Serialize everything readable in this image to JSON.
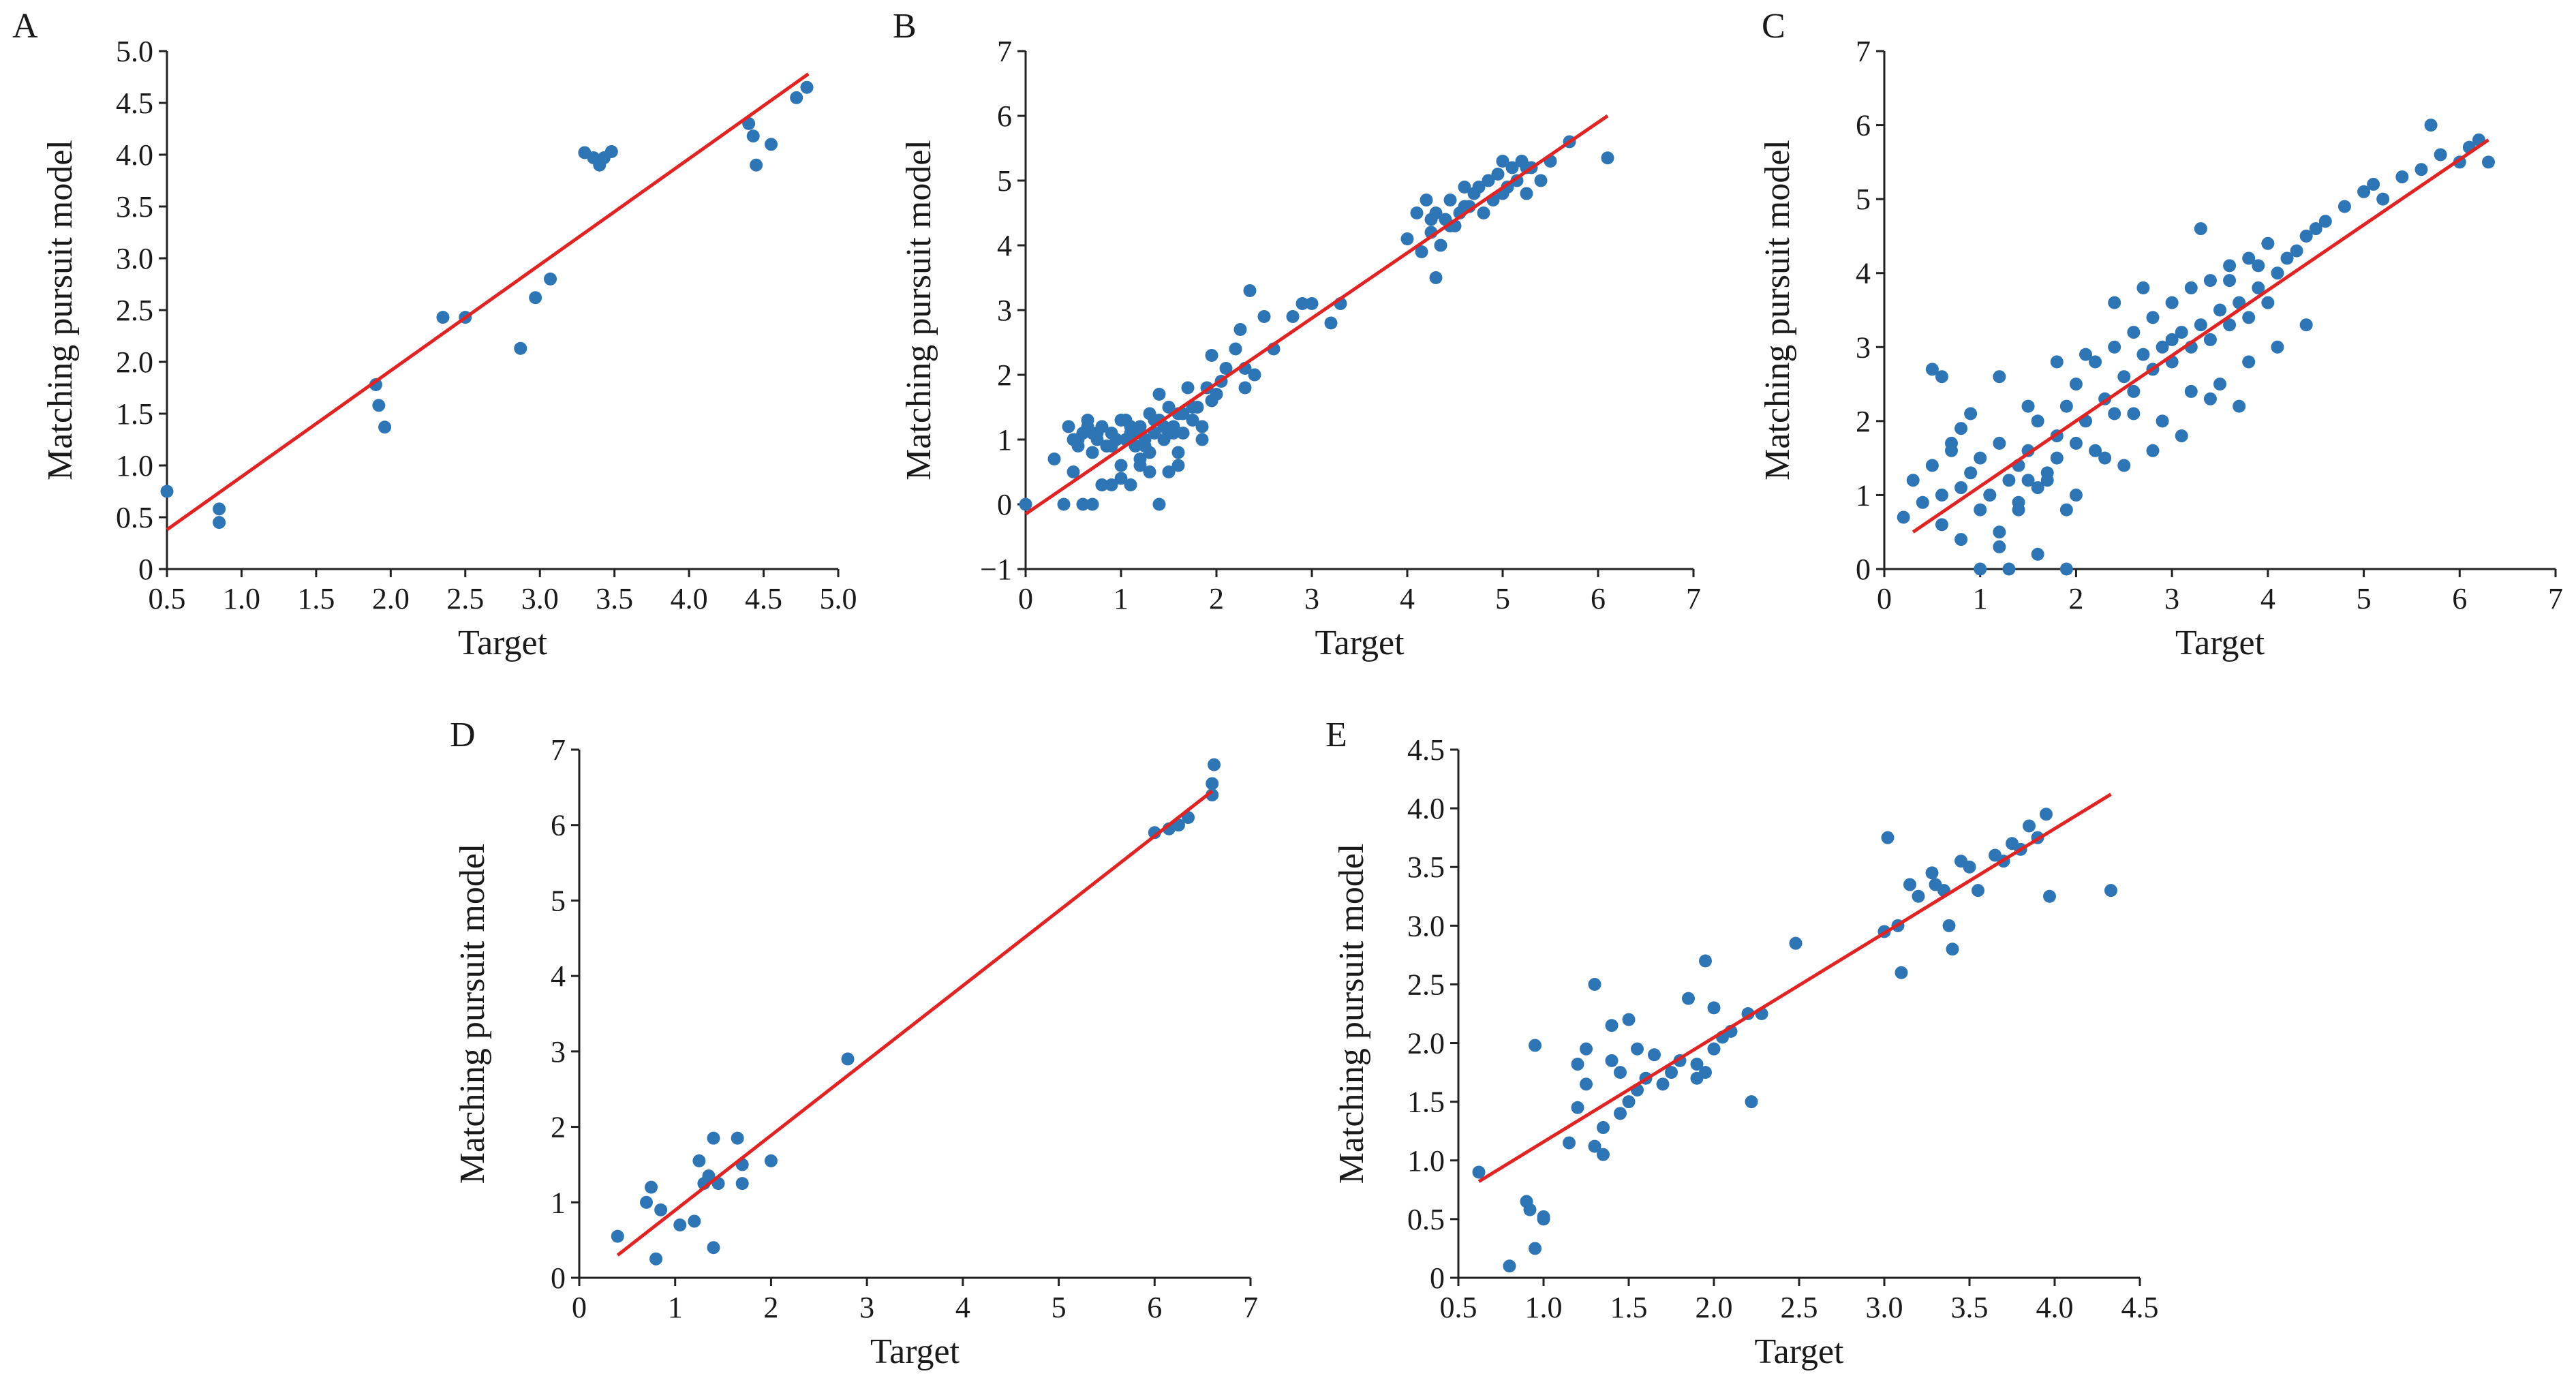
{
  "colors": {
    "point": "#2e75b6",
    "fit_line": "#e02424",
    "axis": "#222222"
  },
  "chart_data": [
    {
      "panel": "A",
      "type": "scatter",
      "xlabel": "Target",
      "ylabel": "Matching pursuit model",
      "xlim": [
        0.5,
        5.0
      ],
      "ylim": [
        0,
        5.0
      ],
      "xticks": [
        "0.5",
        "1.0",
        "1.5",
        "2.0",
        "2.5",
        "3.0",
        "3.5",
        "4.0",
        "4.5",
        "5.0"
      ],
      "yticks": [
        "0",
        "0.5",
        "1.0",
        "1.5",
        "2.0",
        "2.5",
        "3.0",
        "3.5",
        "4.0",
        "4.5",
        "5.0"
      ],
      "fit_line": [
        [
          0.5,
          0.38
        ],
        [
          4.8,
          4.78
        ]
      ],
      "x": [
        0.5,
        0.85,
        0.85,
        1.9,
        1.92,
        1.96,
        2.35,
        2.5,
        2.87,
        2.97,
        3.07,
        3.3,
        3.36,
        3.4,
        3.43,
        3.48,
        4.4,
        4.43,
        4.45,
        4.55,
        4.72,
        4.79
      ],
      "y": [
        0.75,
        0.58,
        0.45,
        1.78,
        1.58,
        1.37,
        2.43,
        2.43,
        2.13,
        2.62,
        2.8,
        4.02,
        3.97,
        3.9,
        3.97,
        4.03,
        4.3,
        4.18,
        3.9,
        4.1,
        4.55,
        4.65
      ]
    },
    {
      "panel": "B",
      "type": "scatter",
      "xlabel": "Target",
      "ylabel": "Matching pursuit model",
      "xlim": [
        0,
        7
      ],
      "ylim": [
        -1,
        7
      ],
      "xticks": [
        "0",
        "1",
        "2",
        "3",
        "4",
        "5",
        "6",
        "7"
      ],
      "yticks": [
        "−1",
        "0",
        "1",
        "2",
        "3",
        "4",
        "5",
        "6",
        "7"
      ],
      "fit_line": [
        [
          0,
          -0.15
        ],
        [
          6.1,
          6.0
        ]
      ],
      "x": [
        0,
        0.3,
        0.4,
        0.45,
        0.5,
        0.5,
        0.55,
        0.6,
        0.6,
        0.65,
        0.7,
        0.7,
        0.75,
        0.8,
        0.8,
        0.85,
        0.9,
        0.9,
        0.95,
        1.0,
        1.0,
        1.05,
        1.1,
        1.1,
        1.15,
        1.2,
        1.2,
        1.25,
        1.3,
        1.3,
        1.35,
        1.4,
        1.4,
        1.45,
        1.5,
        1.5,
        1.55,
        1.6,
        1.6,
        1.65,
        1.7,
        1.75,
        1.8,
        1.85,
        1.9,
        1.95,
        2.0,
        2.05,
        2.1,
        2.2,
        2.25,
        2.3,
        2.35,
        2.4,
        2.5,
        2.6,
        2.8,
        2.9,
        3.0,
        3.2,
        3.3,
        4.0,
        4.1,
        4.15,
        4.2,
        4.25,
        4.3,
        4.35,
        4.4,
        4.45,
        4.5,
        4.55,
        4.6,
        4.65,
        4.7,
        4.75,
        4.8,
        4.85,
        4.9,
        4.95,
        5.0,
        5.05,
        5.1,
        5.15,
        5.2,
        5.25,
        5.3,
        5.4,
        5.5,
        5.7,
        6.1,
        0.7,
        0.9,
        1.1,
        1.3,
        1.5,
        1.2,
        0.8,
        1.0,
        1.4,
        1.6,
        2.3,
        4.3,
        4.6,
        5.0,
        0.55,
        0.65,
        0.75,
        0.85,
        0.95,
        1.05,
        1.15,
        1.25,
        1.35,
        1.45,
        1.55,
        1.65,
        1.75,
        1.85,
        1.95,
        4.25,
        4.45,
        4.65,
        4.85,
        5.05,
        5.25
      ],
      "y": [
        0,
        0.7,
        0.0,
        1.2,
        0.5,
        1.0,
        0.9,
        0.0,
        1.1,
        1.3,
        0.8,
        0.0,
        1.0,
        1.2,
        0.3,
        0.9,
        1.1,
        0.3,
        1.0,
        1.3,
        0.6,
        1.0,
        1.1,
        0.3,
        0.9,
        1.2,
        0.7,
        1.0,
        1.4,
        0.5,
        1.1,
        1.3,
        0.0,
        1.0,
        1.5,
        0.5,
        1.2,
        1.4,
        0.6,
        1.1,
        1.8,
        1.3,
        1.5,
        1.2,
        1.8,
        2.3,
        1.7,
        1.9,
        2.1,
        2.4,
        2.7,
        1.8,
        3.3,
        2.0,
        2.9,
        2.4,
        2.9,
        3.1,
        3.1,
        2.8,
        3.1,
        4.1,
        4.5,
        3.9,
        4.7,
        4.2,
        4.5,
        4.0,
        4.4,
        4.7,
        4.3,
        4.5,
        4.9,
        4.6,
        4.8,
        4.9,
        4.5,
        5.0,
        4.7,
        5.1,
        5.3,
        4.9,
        5.2,
        5.0,
        5.3,
        4.8,
        5.2,
        5.0,
        5.3,
        5.6,
        5.35,
        1.1,
        0.9,
        1.2,
        0.8,
        1.1,
        0.6,
        0.3,
        0.4,
        1.7,
        0.8,
        2.1,
        3.5,
        4.6,
        4.8,
        1.0,
        1.2,
        1.1,
        0.9,
        1.0,
        1.3,
        1.1,
        0.9,
        1.3,
        1.2,
        1.1,
        1.4,
        1.5,
        1.0,
        1.6,
        4.4,
        4.3,
        4.6,
        5.0,
        4.9,
        5.2
      ]
    },
    {
      "panel": "C",
      "type": "scatter",
      "xlabel": "Target",
      "ylabel": "Matching pursuit model",
      "xlim": [
        0,
        7
      ],
      "ylim": [
        0,
        7
      ],
      "xticks": [
        "0",
        "1",
        "2",
        "3",
        "4",
        "5",
        "6",
        "7"
      ],
      "yticks": [
        "0",
        "1",
        "2",
        "3",
        "4",
        "5",
        "6",
        "7"
      ],
      "fit_line": [
        [
          0.3,
          0.5
        ],
        [
          6.3,
          5.8
        ]
      ],
      "x": [
        0.2,
        0.3,
        0.4,
        0.5,
        0.6,
        0.6,
        0.7,
        0.8,
        0.8,
        0.9,
        1.0,
        1.0,
        1.1,
        1.2,
        1.2,
        1.3,
        1.4,
        1.4,
        1.5,
        1.6,
        1.6,
        1.7,
        1.8,
        1.8,
        1.9,
        2.0,
        2.0,
        2.1,
        2.2,
        2.2,
        2.3,
        2.4,
        2.4,
        2.5,
        2.6,
        2.6,
        2.7,
        2.8,
        2.8,
        2.9,
        3.0,
        3.0,
        3.1,
        3.2,
        3.2,
        3.3,
        3.4,
        3.4,
        3.5,
        3.6,
        3.6,
        3.7,
        3.8,
        3.8,
        3.9,
        4.0,
        4.0,
        4.1,
        4.2,
        4.3,
        4.4,
        4.5,
        4.6,
        4.8,
        5.0,
        5.2,
        5.4,
        5.6,
        5.8,
        6.0,
        6.2,
        6.3,
        0.6,
        0.9,
        1.2,
        1.5,
        1.8,
        2.1,
        2.4,
        2.7,
        3.0,
        3.3,
        3.6,
        3.9,
        1.0,
        1.3,
        1.6,
        1.9,
        2.5,
        3.1,
        3.7,
        0.7,
        1.1,
        1.4,
        1.7,
        2.0,
        2.3,
        2.9,
        3.5,
        4.1,
        0.8,
        1.5,
        2.6,
        3.2,
        3.8,
        4.4,
        1.2,
        1.9,
        2.8,
        3.4,
        0.5,
        5.1,
        5.7,
        6.1
      ],
      "y": [
        0.7,
        1.2,
        0.9,
        1.4,
        0.6,
        1.0,
        1.6,
        0.4,
        1.1,
        1.3,
        0.8,
        1.5,
        1.0,
        1.7,
        0.5,
        1.2,
        1.4,
        0.9,
        1.6,
        1.1,
        2.0,
        1.3,
        1.8,
        1.5,
        2.2,
        1.7,
        2.5,
        2.0,
        1.6,
        2.8,
        2.3,
        2.1,
        3.0,
        2.6,
        2.4,
        3.2,
        2.9,
        2.7,
        3.4,
        3.0,
        2.8,
        3.6,
        3.2,
        3.0,
        3.8,
        3.3,
        3.1,
        3.9,
        3.5,
        3.3,
        4.1,
        3.6,
        3.4,
        4.2,
        3.8,
        3.6,
        4.4,
        4.0,
        4.2,
        4.3,
        4.5,
        4.6,
        4.7,
        4.9,
        5.1,
        5.0,
        5.3,
        5.4,
        5.6,
        5.5,
        5.8,
        5.5,
        2.6,
        2.1,
        2.6,
        2.2,
        2.8,
        2.9,
        3.6,
        3.8,
        3.1,
        4.6,
        3.9,
        4.1,
        0.0,
        0.0,
        0.2,
        0.0,
        1.4,
        1.8,
        2.2,
        1.7,
        1.0,
        0.8,
        1.2,
        1.0,
        1.5,
        2.0,
        2.5,
        3.0,
        1.9,
        1.2,
        2.1,
        2.4,
        2.8,
        3.3,
        0.3,
        0.8,
        1.6,
        2.3,
        2.7,
        5.2,
        6.0,
        5.7
      ]
    },
    {
      "panel": "D",
      "type": "scatter",
      "xlabel": "Target",
      "ylabel": "Matching pursuit model",
      "xlim": [
        0,
        7
      ],
      "ylim": [
        0,
        7
      ],
      "xticks": [
        "0",
        "1",
        "2",
        "3",
        "4",
        "5",
        "6",
        "7"
      ],
      "yticks": [
        "0",
        "1",
        "2",
        "3",
        "4",
        "5",
        "6",
        "7"
      ],
      "fit_line": [
        [
          0.4,
          0.3
        ],
        [
          6.6,
          6.45
        ]
      ],
      "x": [
        0.4,
        0.7,
        0.75,
        0.8,
        0.85,
        1.05,
        1.2,
        1.25,
        1.3,
        1.35,
        1.4,
        1.4,
        1.45,
        1.65,
        1.7,
        1.7,
        2.0,
        2.8,
        6.0,
        6.15,
        6.25,
        6.35,
        6.6,
        6.6,
        6.62
      ],
      "y": [
        0.55,
        1.0,
        1.2,
        0.25,
        0.9,
        0.7,
        0.75,
        1.55,
        1.25,
        1.35,
        0.4,
        1.85,
        1.25,
        1.85,
        1.5,
        1.25,
        1.55,
        2.9,
        5.9,
        5.95,
        6.0,
        6.1,
        6.4,
        6.55,
        6.8
      ]
    },
    {
      "panel": "E",
      "type": "scatter",
      "xlabel": "Target",
      "ylabel": "Matching pursuit model",
      "xlim": [
        0.5,
        4.5
      ],
      "ylim": [
        0,
        4.5
      ],
      "xticks": [
        "0.5",
        "1.0",
        "1.5",
        "2.0",
        "2.5",
        "3.0",
        "3.5",
        "4.0",
        "4.5"
      ],
      "yticks": [
        "0",
        "0.5",
        "1.0",
        "1.5",
        "2.0",
        "2.5",
        "3.0",
        "3.5",
        "4.0",
        "4.5"
      ],
      "fit_line": [
        [
          0.62,
          0.82
        ],
        [
          4.33,
          4.12
        ]
      ],
      "x": [
        0.62,
        0.8,
        0.9,
        0.92,
        0.95,
        0.95,
        1.0,
        1.0,
        1.15,
        1.2,
        1.2,
        1.25,
        1.25,
        1.3,
        1.3,
        1.35,
        1.35,
        1.4,
        1.4,
        1.45,
        1.45,
        1.5,
        1.5,
        1.55,
        1.55,
        1.6,
        1.65,
        1.7,
        1.75,
        1.8,
        1.85,
        1.9,
        1.9,
        1.95,
        1.95,
        2.0,
        2.0,
        2.05,
        2.1,
        2.2,
        2.22,
        2.28,
        2.48,
        3.0,
        3.02,
        3.08,
        3.1,
        3.15,
        3.2,
        3.28,
        3.3,
        3.35,
        3.38,
        3.4,
        3.45,
        3.5,
        3.55,
        3.65,
        3.7,
        3.75,
        3.8,
        3.85,
        3.9,
        3.95,
        3.97,
        4.33
      ],
      "y": [
        0.9,
        0.1,
        0.65,
        0.58,
        0.25,
        1.98,
        0.52,
        0.5,
        1.15,
        1.45,
        1.82,
        1.65,
        1.95,
        1.12,
        2.5,
        1.28,
        1.05,
        1.85,
        2.15,
        1.4,
        1.75,
        2.2,
        1.5,
        1.6,
        1.95,
        1.7,
        1.9,
        1.65,
        1.75,
        1.85,
        2.38,
        1.7,
        1.82,
        1.75,
        2.7,
        1.95,
        2.3,
        2.05,
        2.1,
        2.25,
        1.5,
        2.25,
        2.85,
        2.95,
        3.75,
        3.0,
        2.6,
        3.35,
        3.25,
        3.45,
        3.35,
        3.3,
        3.0,
        2.8,
        3.55,
        3.5,
        3.3,
        3.6,
        3.55,
        3.7,
        3.65,
        3.85,
        3.75,
        3.95,
        3.25,
        3.3
      ]
    }
  ]
}
